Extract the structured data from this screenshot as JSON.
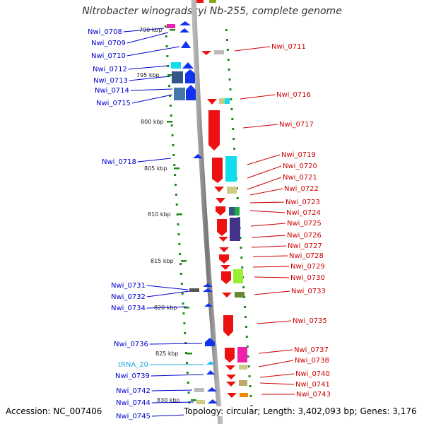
{
  "title": "Nitrobacter winogradskyi Nb-255, complete genome",
  "footer": {
    "accession": "Accession: NC_007406",
    "topology": "Topology: circular; Length: 3,402,093 bp; Genes: 3,176"
  },
  "colors": {
    "left_label": "#0000cc",
    "right_label": "#cc0000",
    "trna_label": "#22aadd",
    "tick": "#1a8a1a"
  },
  "kbp_labels": [
    "790 kbp",
    "795 kbp",
    "800 kbp",
    "805 kbp",
    "810 kbp",
    "815 kbp",
    "820 kbp",
    "825 kbp",
    "830 kbp"
  ],
  "left_genes": [
    "Nwi_0708",
    "Nwi_0709",
    "Nwi_0710",
    "Nwi_0712",
    "Nwi_0713",
    "Nwi_0714",
    "Nwi_0715",
    "Nwi_0718",
    "Nwi_0731",
    "Nwi_0732",
    "Nwi_0734",
    "Nwi_0736",
    "tRNA_20",
    "Nwi_0739",
    "Nwi_0742",
    "Nwi_0744",
    "Nwi_0745"
  ],
  "right_genes": [
    "Nwi_0711",
    "Nwi_0716",
    "Nwi_0717",
    "Nwi_0719",
    "Nwi_0720",
    "Nwi_0721",
    "Nwi_0722",
    "Nwi_0723",
    "Nwi_0724",
    "Nwi_0725",
    "Nwi_0726",
    "Nwi_0727",
    "Nwi_0728",
    "Nwi_0729",
    "Nwi_0730",
    "Nwi_0733",
    "Nwi_0735",
    "Nwi_0737",
    "Nwi_0738",
    "Nwi_0740",
    "Nwi_0741",
    "Nwi_0743"
  ]
}
